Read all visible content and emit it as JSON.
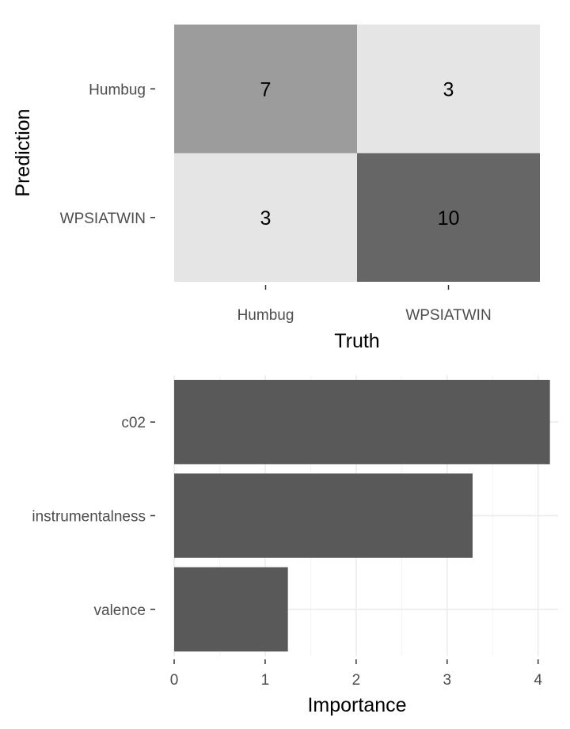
{
  "chart_data": [
    {
      "type": "heatmap",
      "title": "",
      "xlabel": "Truth",
      "ylabel": "Prediction",
      "x_categories": [
        "Humbug",
        "WPSIATWIN"
      ],
      "y_categories": [
        "Humbug",
        "WPSIATWIN"
      ],
      "cells": [
        {
          "truth": "Humbug",
          "prediction": "Humbug",
          "value": 7
        },
        {
          "truth": "WPSIATWIN",
          "prediction": "Humbug",
          "value": 3
        },
        {
          "truth": "Humbug",
          "prediction": "WPSIATWIN",
          "value": 3
        },
        {
          "truth": "WPSIATWIN",
          "prediction": "WPSIATWIN",
          "value": 10
        }
      ],
      "colors": {
        "low": "#e5e5e5",
        "mid": "#989898",
        "high": "#666666"
      }
    },
    {
      "type": "bar",
      "orientation": "horizontal",
      "title": "",
      "xlabel": "Importance",
      "ylabel": "",
      "categories": [
        "c02",
        "instrumentalness",
        "valence"
      ],
      "values": [
        4.13,
        3.28,
        1.25
      ],
      "xlim": [
        0,
        4.22
      ],
      "xticks": [
        0,
        1,
        2,
        3,
        4
      ],
      "bar_color": "#595959",
      "grid": true
    }
  ]
}
